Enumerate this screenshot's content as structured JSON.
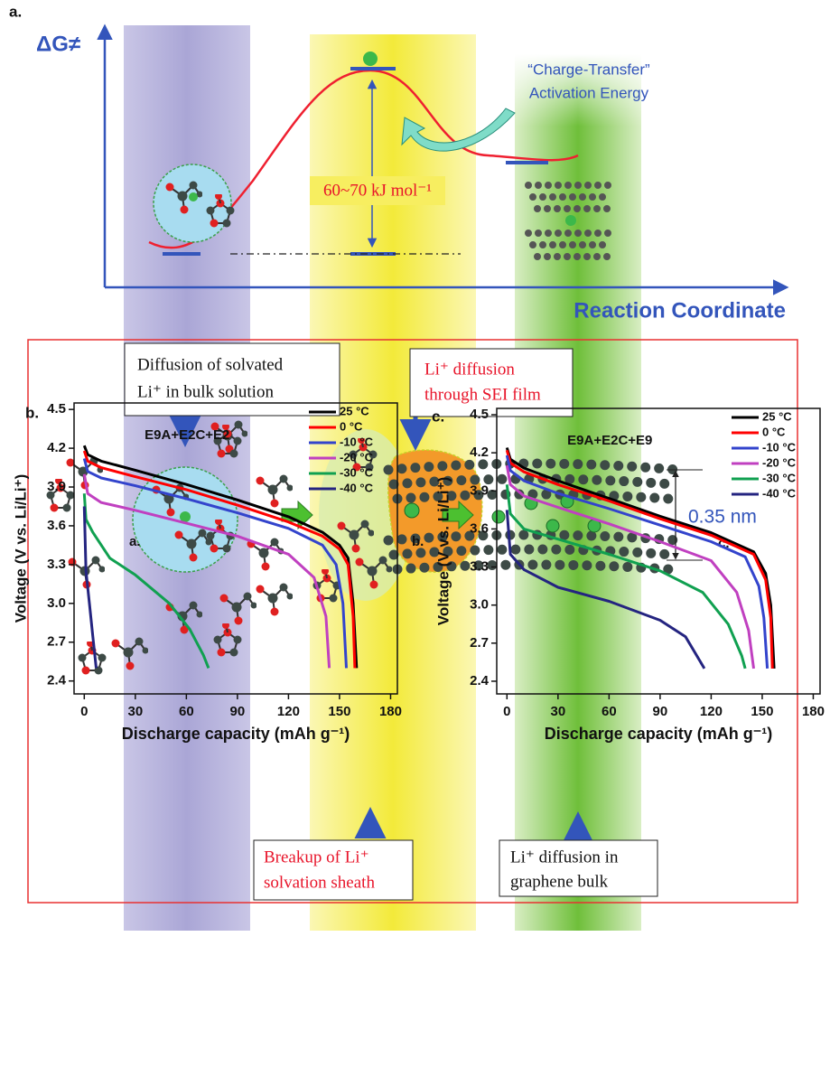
{
  "panel_a": {
    "label": "a.",
    "y_axis_label": "ΔG≠",
    "x_axis_label": "Reaction Coordinate",
    "barrier_label": "60~70 kJ mol⁻¹",
    "activation_label": [
      "“Charge-Transfer”",
      "Activation Energy"
    ],
    "boxes": [
      {
        "lines": [
          "Diffusion of solvated",
          "Li⁺ in bulk solution"
        ]
      },
      {
        "lines": [
          "Li⁺ diffusion",
          "through SEI film"
        ]
      },
      {
        "lines": [
          "Breakup of Li⁺",
          "solvation sheath"
        ]
      },
      {
        "lines": [
          "Li⁺ diffusion in",
          "graphene bulk"
        ]
      }
    ],
    "spacing_label": "0.35 nm",
    "site_labels": [
      "a.",
      "b.",
      "c."
    ]
  },
  "chart_data": [
    {
      "type": "line",
      "label": "b.",
      "annotation": "E9A+E2C+E2",
      "x_label": "Discharge capacity (mAh g⁻¹)",
      "y_label": "Voltage (V vs. Li/Li⁺)",
      "xlim": [
        -6,
        184
      ],
      "ylim": [
        2.3,
        4.55
      ],
      "xticks": [
        0,
        30,
        60,
        90,
        120,
        150,
        180
      ],
      "yticks": [
        2.4,
        2.7,
        {
          "value": 3,
          "label": "3.0"
        },
        3.3,
        3.6,
        3.9,
        4.2,
        4.5
      ],
      "legend": "upper right",
      "series": [
        {
          "name": "25 °C",
          "color": "#000000",
          "x": [
            0,
            2,
            10,
            30,
            60,
            90,
            120,
            140,
            150,
            155,
            158,
            160
          ],
          "values": [
            4.22,
            4.15,
            4.1,
            4.03,
            3.92,
            3.8,
            3.67,
            3.55,
            3.45,
            3.35,
            3.0,
            2.5
          ]
        },
        {
          "name": "0 °C",
          "color": "#ff0000",
          "x": [
            0,
            2,
            10,
            30,
            60,
            90,
            120,
            140,
            150,
            155,
            158,
            159
          ],
          "values": [
            4.18,
            4.1,
            4.05,
            3.98,
            3.88,
            3.76,
            3.63,
            3.52,
            3.42,
            3.3,
            2.9,
            2.5
          ]
        },
        {
          "name": "-10 °C",
          "color": "#3344cc",
          "x": [
            0,
            2,
            10,
            30,
            60,
            90,
            120,
            140,
            148,
            152,
            154
          ],
          "values": [
            4.12,
            4.02,
            3.97,
            3.91,
            3.81,
            3.7,
            3.58,
            3.45,
            3.3,
            3.0,
            2.5
          ]
        },
        {
          "name": "-20 °C",
          "color": "#c040c0",
          "x": [
            0,
            2,
            10,
            30,
            60,
            90,
            120,
            135,
            142,
            144
          ],
          "values": [
            4.0,
            3.85,
            3.78,
            3.72,
            3.62,
            3.52,
            3.38,
            3.2,
            2.9,
            2.5
          ]
        },
        {
          "name": "-30 °C",
          "color": "#10a050",
          "x": [
            0,
            1,
            5,
            15,
            30,
            50,
            62,
            70,
            73
          ],
          "values": [
            3.85,
            3.65,
            3.55,
            3.35,
            3.22,
            3.0,
            2.8,
            2.6,
            2.5
          ]
        },
        {
          "name": "-40 °C",
          "color": "#242480",
          "x": [
            0,
            1,
            3,
            5,
            7
          ],
          "values": [
            3.75,
            3.25,
            3.0,
            2.75,
            2.5
          ]
        }
      ]
    },
    {
      "type": "line",
      "label": "c.",
      "annotation": "E9A+E2C+E9",
      "x_label": "Discharge capacity (mAh g⁻¹)",
      "y_label": "Voltage (V vs. Li/Li⁺)",
      "xlim": [
        -6,
        184
      ],
      "ylim": [
        2.3,
        4.55
      ],
      "xticks": [
        0,
        30,
        60,
        90,
        120,
        150,
        180
      ],
      "yticks": [
        2.4,
        2.7,
        {
          "value": 3,
          "label": "3.0"
        },
        3.3,
        3.6,
        3.9,
        4.2,
        4.5
      ],
      "legend": "upper right",
      "series": [
        {
          "name": "25 °C",
          "color": "#000000",
          "x": [
            0,
            2,
            10,
            30,
            60,
            90,
            120,
            145,
            152,
            155,
            157
          ],
          "values": [
            4.24,
            4.15,
            4.08,
            3.98,
            3.84,
            3.7,
            3.57,
            3.42,
            3.25,
            3.0,
            2.5
          ]
        },
        {
          "name": "0 °C",
          "color": "#ff0000",
          "x": [
            0,
            2,
            10,
            30,
            60,
            90,
            120,
            145,
            152,
            155,
            156
          ],
          "values": [
            4.22,
            4.12,
            4.05,
            3.95,
            3.82,
            3.68,
            3.55,
            3.4,
            3.2,
            2.9,
            2.5
          ]
        },
        {
          "name": "-10 °C",
          "color": "#3344cc",
          "x": [
            0,
            2,
            10,
            30,
            60,
            90,
            120,
            140,
            148,
            151,
            153
          ],
          "values": [
            4.18,
            4.06,
            3.98,
            3.88,
            3.76,
            3.63,
            3.5,
            3.38,
            3.15,
            2.9,
            2.5
          ]
        },
        {
          "name": "-20 °C",
          "color": "#c040c0",
          "x": [
            0,
            2,
            10,
            30,
            60,
            90,
            120,
            135,
            142,
            145
          ],
          "values": [
            4.1,
            3.95,
            3.86,
            3.77,
            3.64,
            3.5,
            3.35,
            3.1,
            2.8,
            2.5
          ]
        },
        {
          "name": "-30 °C",
          "color": "#10a050",
          "x": [
            0,
            2,
            10,
            30,
            60,
            90,
            115,
            130,
            138,
            140
          ],
          "values": [
            3.95,
            3.72,
            3.6,
            3.52,
            3.4,
            3.27,
            3.1,
            2.85,
            2.6,
            2.5
          ]
        },
        {
          "name": "-40 °C",
          "color": "#242480",
          "x": [
            0,
            2,
            10,
            30,
            60,
            90,
            105,
            116
          ],
          "values": [
            3.75,
            3.4,
            3.28,
            3.14,
            3.03,
            2.88,
            2.75,
            2.5
          ]
        }
      ]
    }
  ]
}
